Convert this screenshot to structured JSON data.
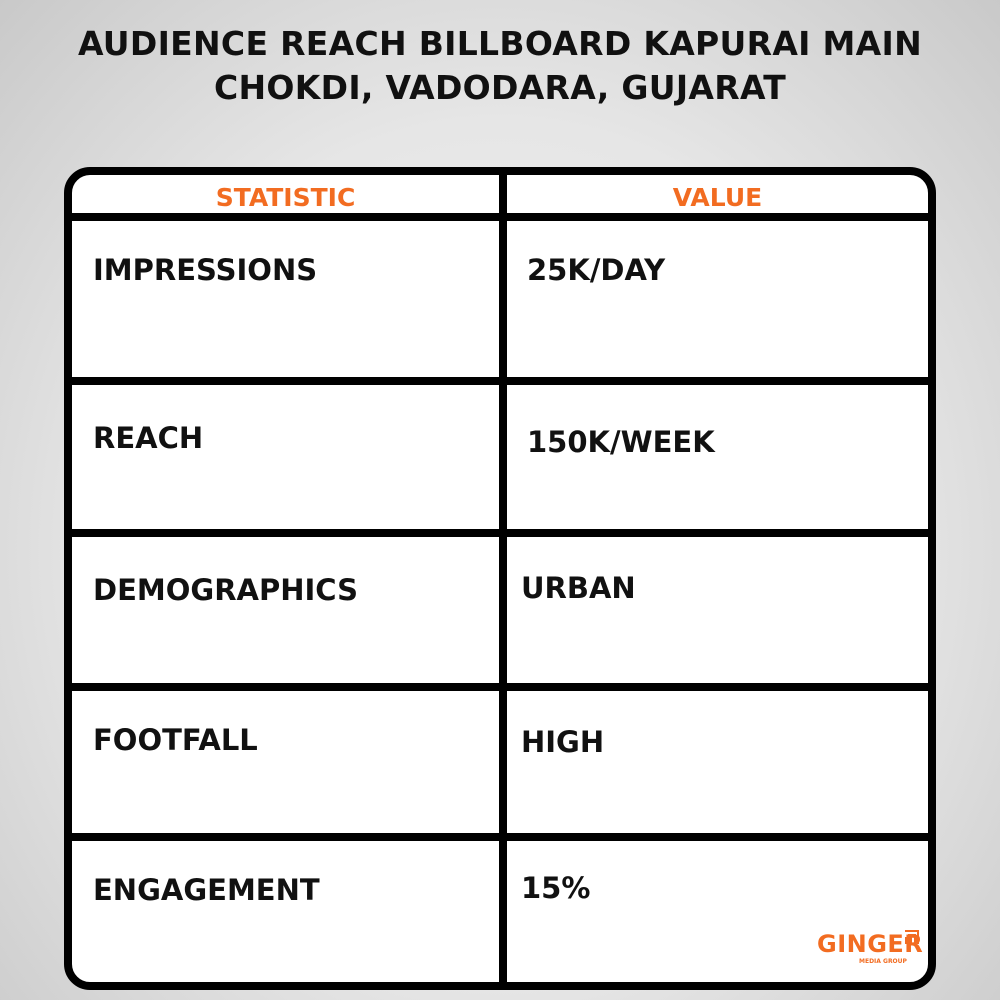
{
  "title": [
    "AUDIENCE REACH BILLBOARD  KAPURAI MAIN",
    "CHOKDI, VADODARA, GUJARAT"
  ],
  "table": {
    "headers": [
      "STATISTIC",
      "VALUE"
    ],
    "rows": [
      {
        "statistic": "IMPRESSIONS",
        "value": "25K/DAY"
      },
      {
        "statistic": "REACH",
        "value": "150K/WEEK"
      },
      {
        "statistic": "DEMOGRAPHICS",
        "value": "URBAN"
      },
      {
        "statistic": "FOOTFALL",
        "value": "HIGH"
      },
      {
        "statistic": "ENGAGEMENT",
        "value": "15%"
      }
    ]
  },
  "logo": {
    "name": "GINGER",
    "tagline": "MEDIA GROUP"
  },
  "colors": {
    "accent": "#f26c21",
    "border": "#000000"
  }
}
